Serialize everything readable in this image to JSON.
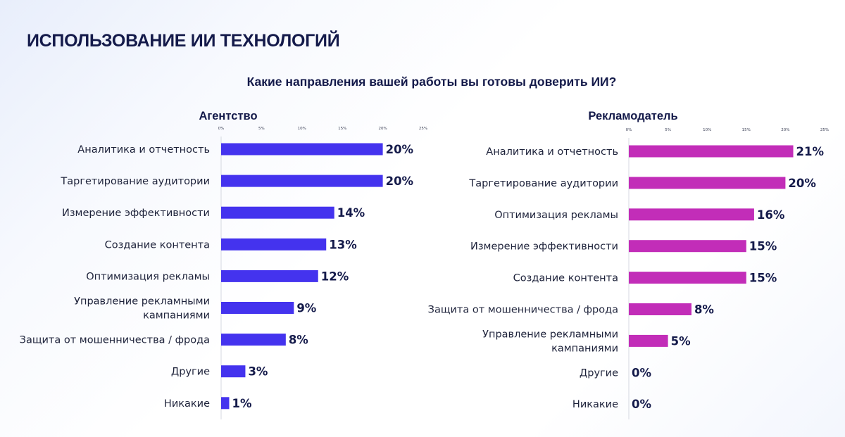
{
  "page": {
    "title": "ИСПОЛЬЗОВАНИЕ ИИ ТЕХНОЛОГИЙ",
    "subtitle": "Какие направления вашей работы вы готовы доверить ИИ?"
  },
  "chart_data": [
    {
      "type": "bar",
      "orientation": "horizontal",
      "title": "Агентство",
      "categories": [
        "Аналитика и отчетность",
        "Таргетирование аудитории",
        "Измерение эффективности",
        "Создание контента",
        "Оптимизация рекламы",
        "Управление рекламными кампаниями",
        "Защита от мошенничества / фрода",
        "Другие",
        "Никакие"
      ],
      "category_lines": [
        [
          "Аналитика и отчетность"
        ],
        [
          "Таргетирование аудитории"
        ],
        [
          "Измерение эффективности"
        ],
        [
          "Создание контента"
        ],
        [
          "Оптимизация рекламы"
        ],
        [
          "Управление рекламными",
          "кампаниями"
        ],
        [
          "Защита от мошенничества / фрода"
        ],
        [
          "Другие"
        ],
        [
          "Никакие"
        ]
      ],
      "values": [
        20,
        20,
        14,
        13,
        12,
        9,
        8,
        3,
        1
      ],
      "value_labels": [
        "20%",
        "20%",
        "14%",
        "13%",
        "12%",
        "9%",
        "8%",
        "3%",
        "1%"
      ],
      "xlim": [
        0,
        25
      ],
      "x_ticks": [
        "0%",
        "5%",
        "10%",
        "15%",
        "20%",
        "25%"
      ],
      "color": "#4433ee",
      "grid": false
    },
    {
      "type": "bar",
      "orientation": "horizontal",
      "title": "Рекламодатель",
      "categories": [
        "Аналитика и отчетность",
        "Таргетирование аудитории",
        "Оптимизация рекламы",
        "Измерение эффективности",
        "Создание контента",
        "Защита от мошенничества / фрода",
        "Управление рекламными кампаниями",
        "Другие",
        "Никакие"
      ],
      "category_lines": [
        [
          "Аналитика и отчетность"
        ],
        [
          "Таргетирование аудитории"
        ],
        [
          "Оптимизация рекламы"
        ],
        [
          "Измерение эффективности"
        ],
        [
          "Создание контента"
        ],
        [
          "Защита от мошенничества / фрода"
        ],
        [
          "Управление рекламными",
          "кампаниями"
        ],
        [
          "Другие"
        ],
        [
          "Никакие"
        ]
      ],
      "values": [
        21,
        20,
        16,
        15,
        15,
        8,
        5,
        0,
        0
      ],
      "value_labels": [
        "21%",
        "20%",
        "16%",
        "15%",
        "15%",
        "8%",
        "5%",
        "0%",
        "0%"
      ],
      "xlim": [
        0,
        25
      ],
      "x_ticks": [
        "0%",
        "5%",
        "10%",
        "15%",
        "20%",
        "25%"
      ],
      "color": "#c22db8",
      "grid": false
    }
  ]
}
